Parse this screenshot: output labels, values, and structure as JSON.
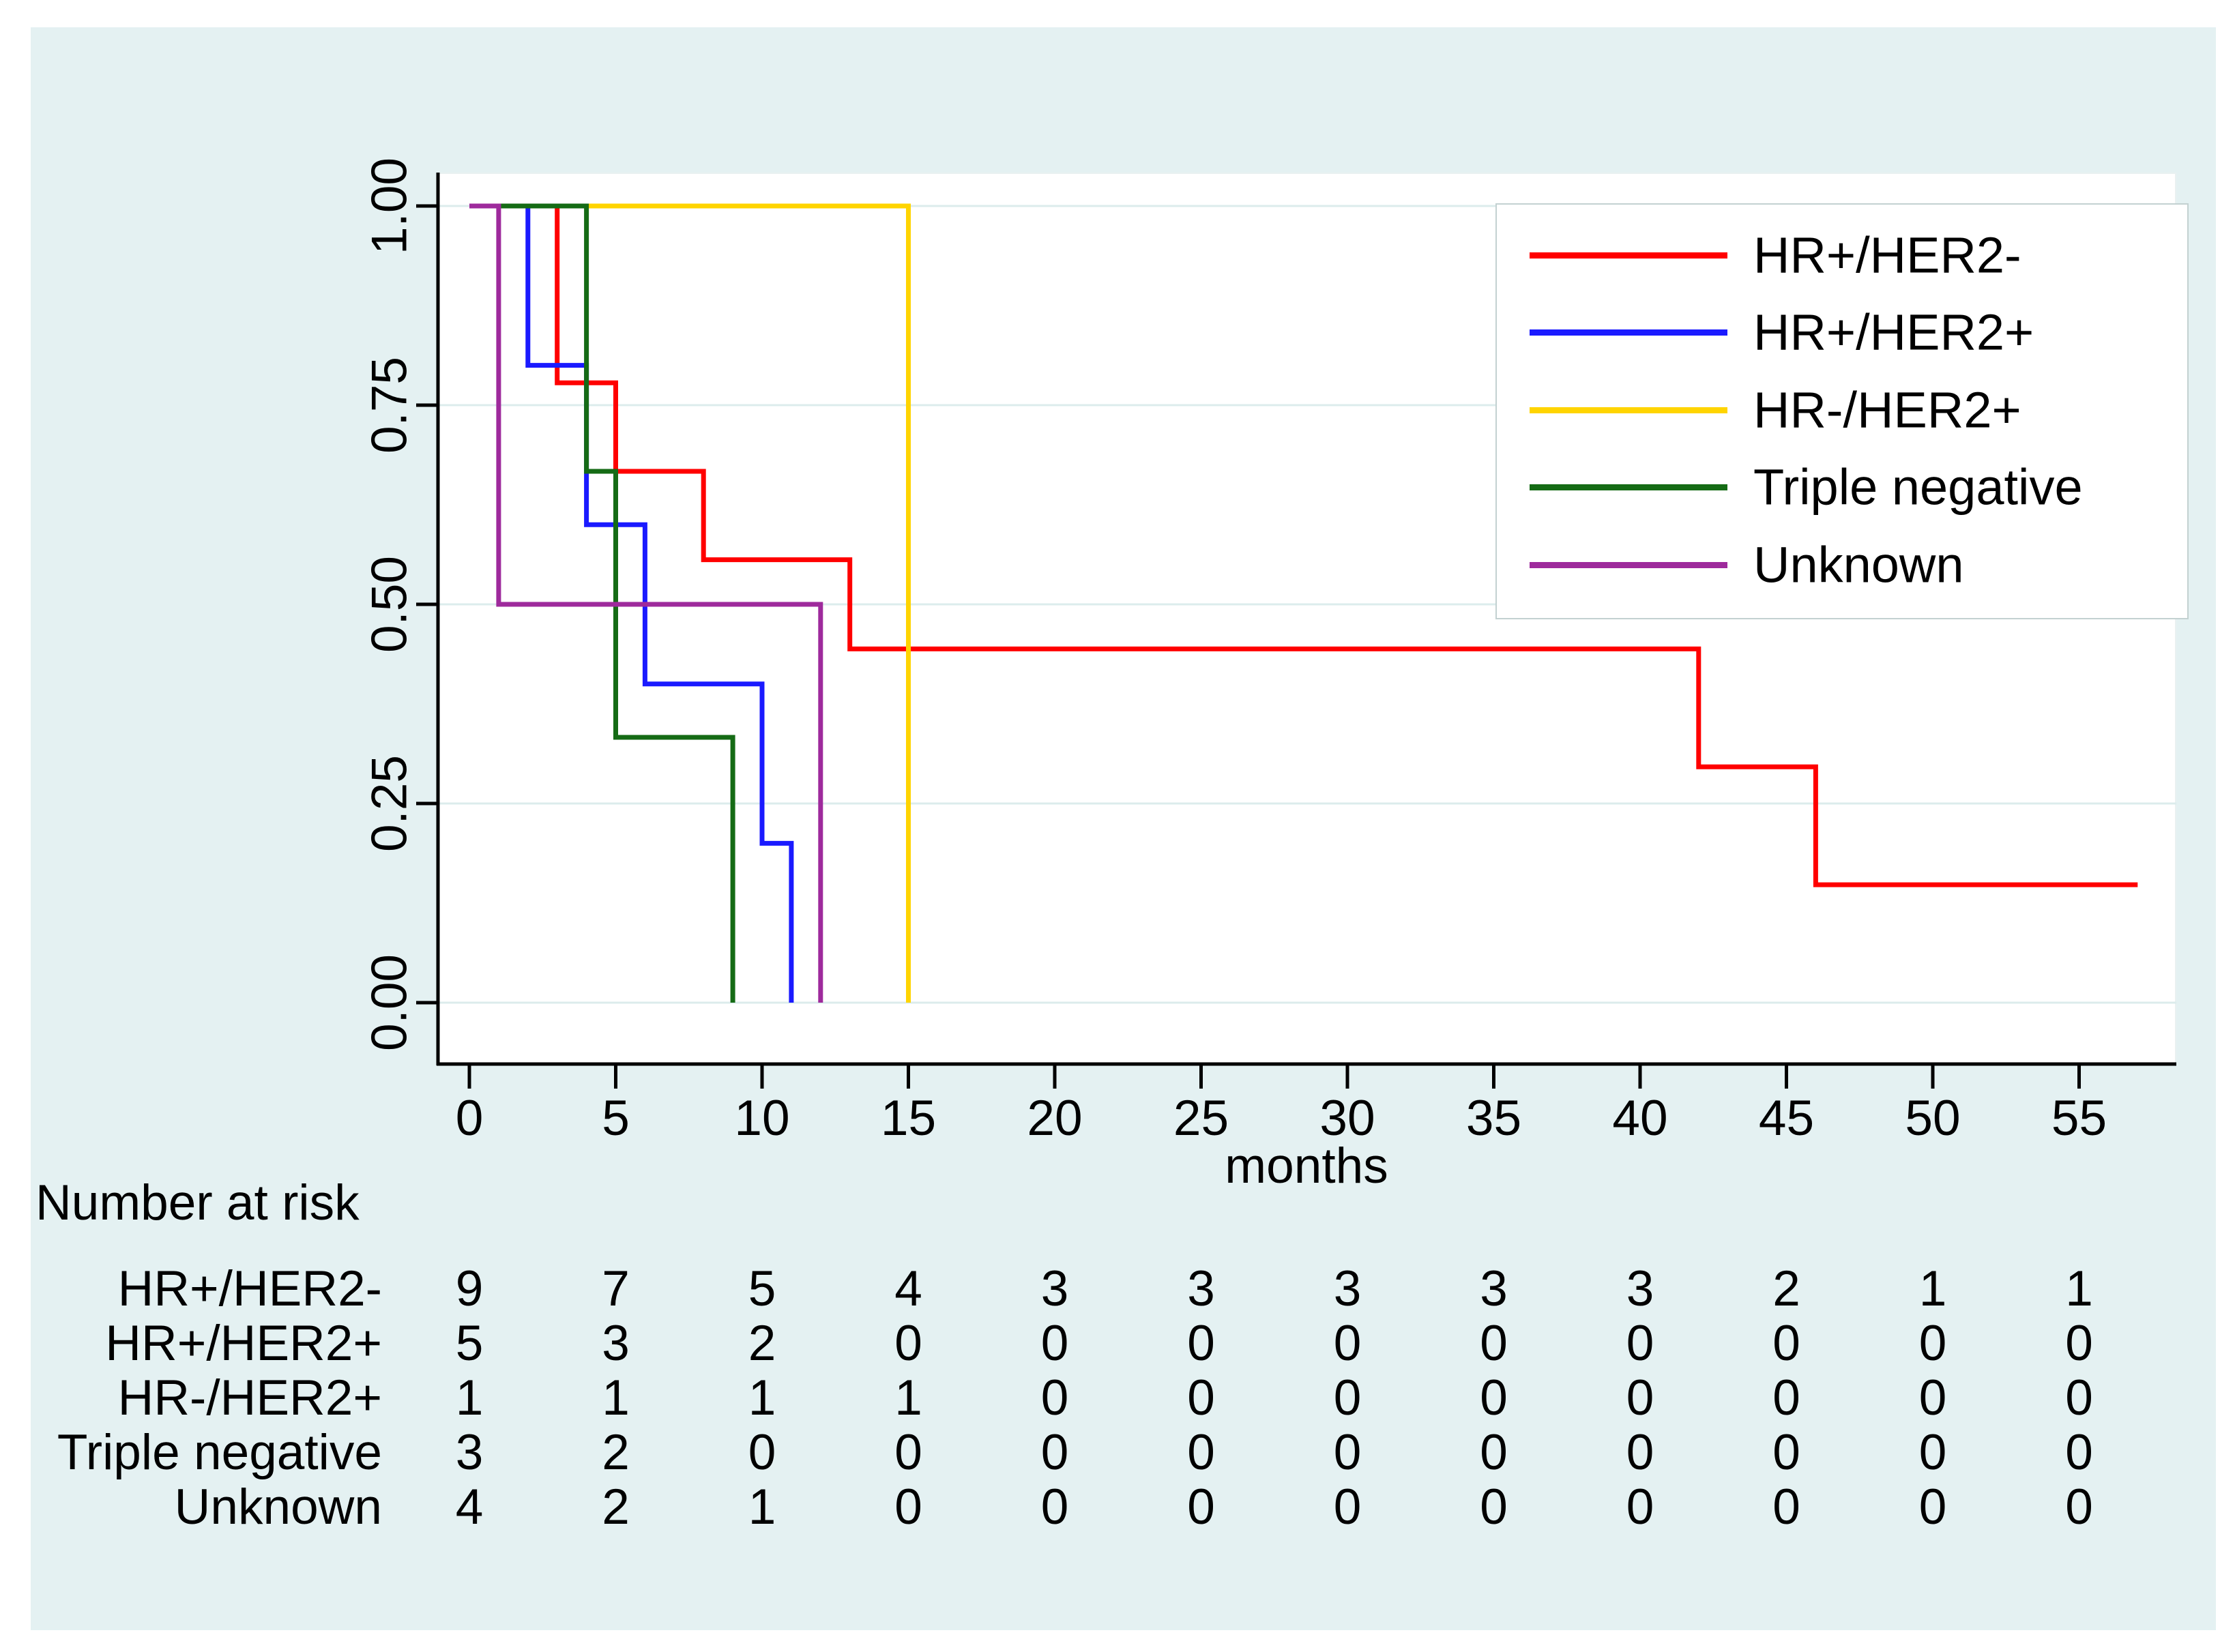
{
  "figure": {
    "panel_bg": "#e4f1f2",
    "plot_bg": "#ffffff",
    "grid_color": "#dcecec",
    "axis_color": "#000000",
    "text_color": "#000000",
    "legend_border": "#c3d1d1"
  },
  "chart_data": {
    "type": "line",
    "subtype": "kaplan-meier-step-survival",
    "title": "",
    "xlabel": "months",
    "ylabel": "",
    "xlim": [
      0,
      58
    ],
    "ylim": [
      0,
      1
    ],
    "grid": "horizontal",
    "legend_position": "top-right",
    "x_ticks": [
      0,
      5,
      10,
      15,
      20,
      25,
      30,
      35,
      40,
      45,
      50,
      55
    ],
    "y_ticks": [
      {
        "value": 1.0,
        "label": "1.00"
      },
      {
        "value": 0.75,
        "label": "0.75"
      },
      {
        "value": 0.5,
        "label": "0.50"
      },
      {
        "value": 0.25,
        "label": "0.25"
      },
      {
        "value": 0.0,
        "label": "0.00"
      }
    ],
    "series": [
      {
        "name": "HR+/HER2-",
        "color": "#ff0000",
        "steps": [
          [
            0,
            1.0
          ],
          [
            3,
            0.778
          ],
          [
            5,
            0.667
          ],
          [
            8,
            0.556
          ],
          [
            13,
            0.444
          ],
          [
            42,
            0.296
          ],
          [
            46,
            0.148
          ]
        ],
        "end_time": 57
      },
      {
        "name": "HR+/HER2+",
        "color": "#1a1aff",
        "steps": [
          [
            0,
            1.0
          ],
          [
            2,
            0.8
          ],
          [
            4,
            0.6
          ],
          [
            6,
            0.4
          ],
          [
            10,
            0.2
          ],
          [
            11,
            0.0
          ]
        ],
        "end_time": 11
      },
      {
        "name": "HR-/HER2+",
        "color": "#ffd400",
        "steps": [
          [
            0,
            1.0
          ],
          [
            15,
            0.0
          ]
        ],
        "end_time": 15
      },
      {
        "name": "Triple negative",
        "color": "#156b15",
        "steps": [
          [
            0,
            1.0
          ],
          [
            4,
            0.667
          ],
          [
            5,
            0.333
          ],
          [
            9,
            0.0
          ]
        ],
        "end_time": 9
      },
      {
        "name": "Unknown",
        "color": "#9e2a9c",
        "steps": [
          [
            0,
            1.0
          ],
          [
            1,
            0.5
          ],
          [
            12,
            0.0
          ]
        ],
        "end_time": 12
      }
    ],
    "risk_table": {
      "title": "Number at risk",
      "time_points": [
        0,
        5,
        10,
        15,
        20,
        25,
        30,
        35,
        40,
        45,
        50,
        55
      ],
      "rows": [
        {
          "label": "HR+/HER2-",
          "counts": [
            9,
            7,
            5,
            4,
            3,
            3,
            3,
            3,
            3,
            2,
            1,
            1
          ]
        },
        {
          "label": "HR+/HER2+",
          "counts": [
            5,
            3,
            2,
            0,
            0,
            0,
            0,
            0,
            0,
            0,
            0,
            0
          ]
        },
        {
          "label": "HR-/HER2+",
          "counts": [
            1,
            1,
            1,
            1,
            0,
            0,
            0,
            0,
            0,
            0,
            0,
            0
          ]
        },
        {
          "label": "Triple negative",
          "counts": [
            3,
            2,
            0,
            0,
            0,
            0,
            0,
            0,
            0,
            0,
            0,
            0
          ]
        },
        {
          "label": "Unknown",
          "counts": [
            4,
            2,
            1,
            0,
            0,
            0,
            0,
            0,
            0,
            0,
            0,
            0
          ]
        }
      ]
    }
  }
}
